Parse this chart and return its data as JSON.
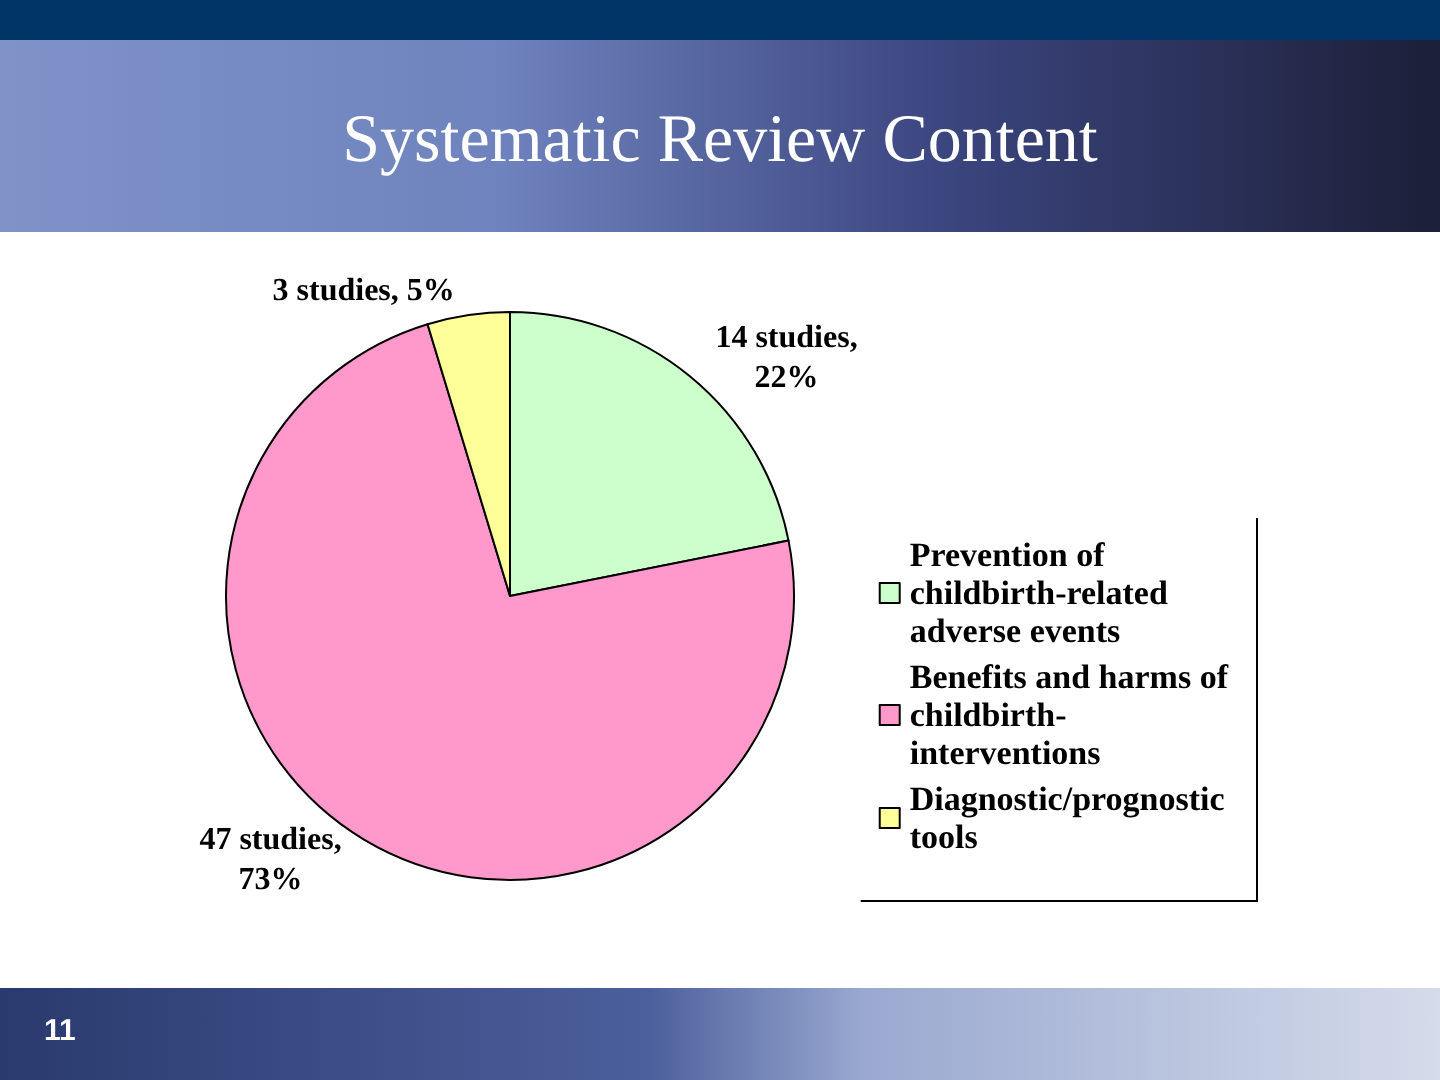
{
  "chart_data": {
    "type": "pie",
    "title": "Systematic Review Content",
    "categories": [
      "Prevention of childbirth-related adverse events",
      "Benefits and harms of childbirth-interventions",
      "Diagnostic/prognostic tools"
    ],
    "values": [
      14,
      47,
      3
    ],
    "colors": [
      "#ccffcc",
      "#ff99cc",
      "#ffff99"
    ],
    "value_labels": [
      "14 studies, 22%",
      "47 studies, 73%",
      "3 studies, 5%"
    ],
    "legend": "right",
    "annotations": [
      "11"
    ]
  }
}
